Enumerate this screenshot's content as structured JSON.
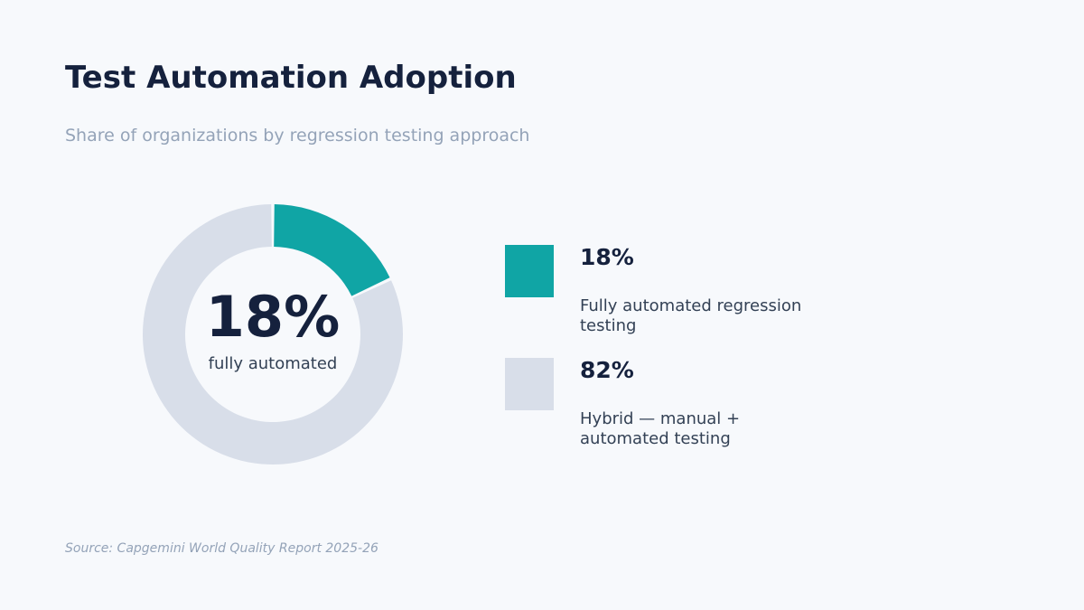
{
  "header": {
    "title": "Test Automation Adoption",
    "subtitle": "Share of organizations by regression testing approach"
  },
  "center": {
    "value": "18%",
    "label": "fully automated"
  },
  "legend": [
    {
      "value": "18%",
      "label": "Fully automated regression testing",
      "color": "#10a5a5"
    },
    {
      "value": "82%",
      "label": "Hybrid — manual + automated testing",
      "color": "#d8dee9"
    }
  ],
  "footer": {
    "source": "Source: Capgemini World Quality Report 2025-26"
  },
  "chart_data": {
    "type": "pie",
    "categories": [
      "Fully automated regression testing",
      "Hybrid — manual + automated testing"
    ],
    "values": [
      18,
      82
    ],
    "unit": "%",
    "colors": [
      "#10a5a5",
      "#d8dee9"
    ],
    "title": "Test Automation Adoption",
    "subtitle": "Share of organizations by regression testing approach"
  }
}
